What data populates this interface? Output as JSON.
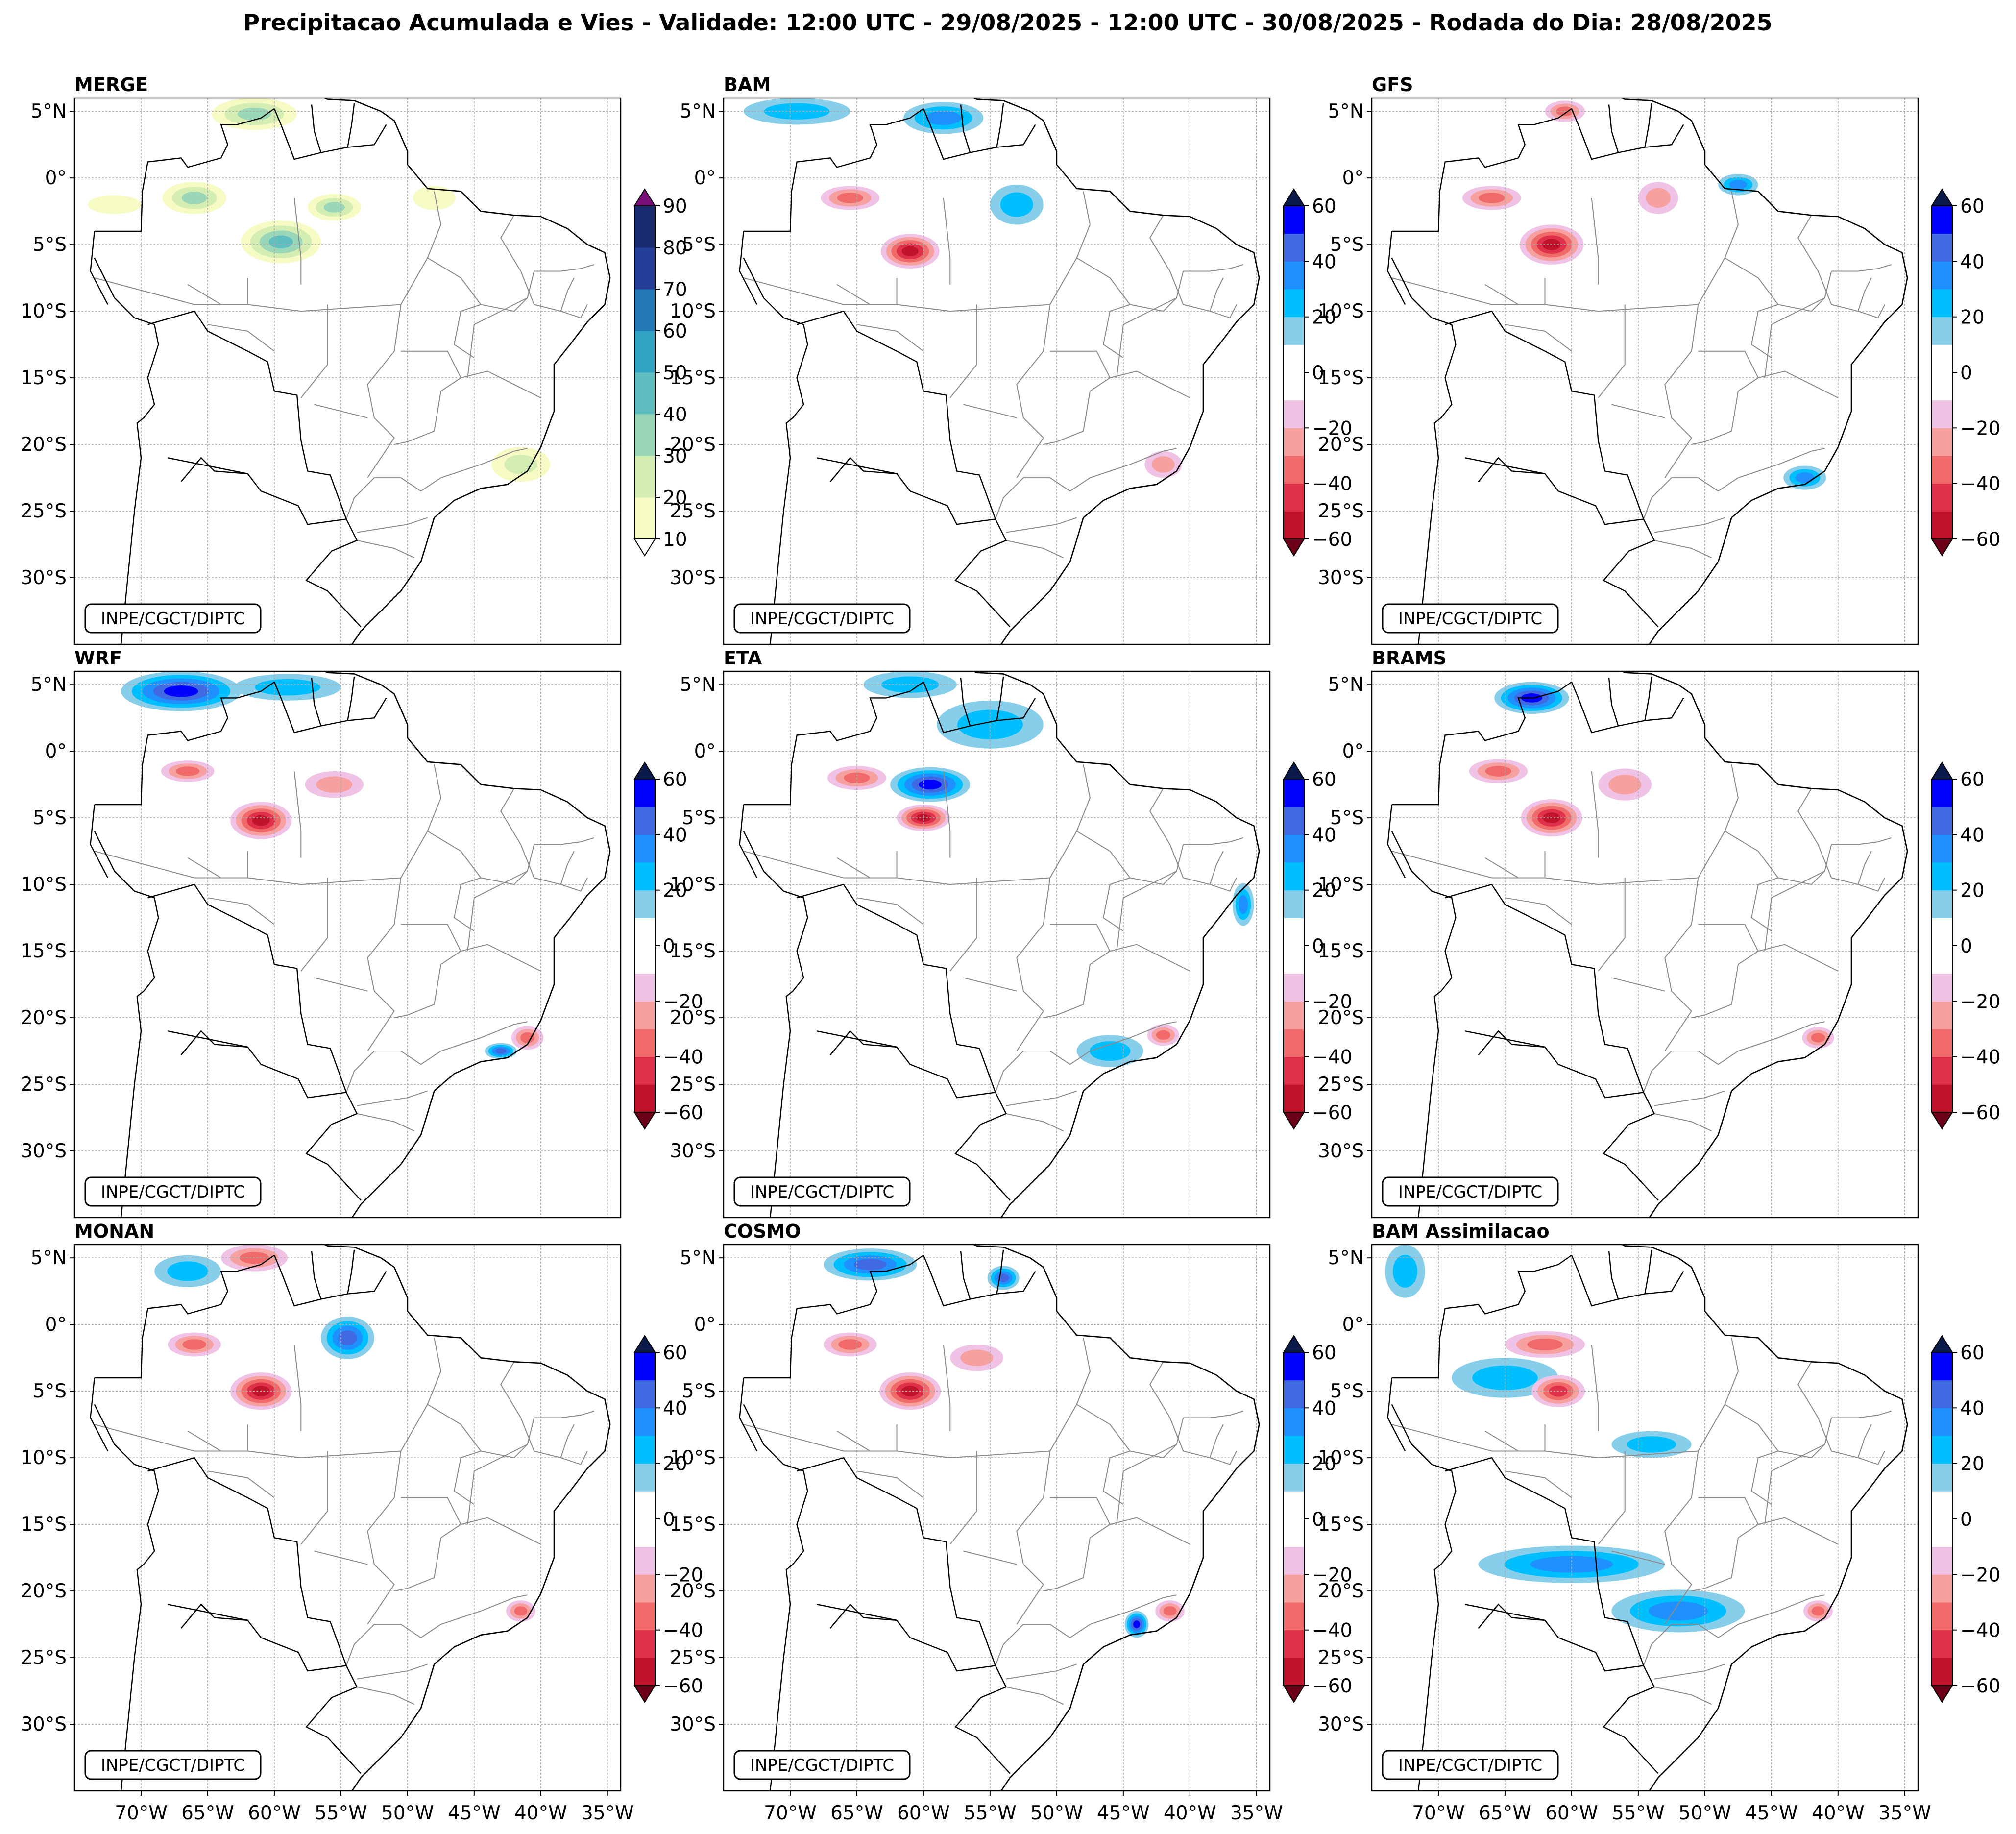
{
  "title": "Precipitacao Acumulada e Vies - Validade: 12:00 UTC - 29/08/2025 - 12:00 UTC - 30/08/2025 - Rodada do Dia: 28/08/2025",
  "credit": "INPE/CGCT/DIPTC",
  "map": {
    "lon_range": [
      -75,
      -34
    ],
    "lat_range": [
      -35,
      6
    ],
    "lat_ticks": [
      {
        "value": 5,
        "label": "5°N"
      },
      {
        "value": 0,
        "label": "0°"
      },
      {
        "value": -5,
        "label": "5°S"
      },
      {
        "value": -10,
        "label": "10°S"
      },
      {
        "value": -15,
        "label": "15°S"
      },
      {
        "value": -20,
        "label": "20°S"
      },
      {
        "value": -25,
        "label": "25°S"
      },
      {
        "value": -30,
        "label": "30°S"
      }
    ],
    "lon_ticks": [
      {
        "value": -70,
        "label": "70°W"
      },
      {
        "value": -65,
        "label": "65°W"
      },
      {
        "value": -60,
        "label": "60°W"
      },
      {
        "value": -55,
        "label": "55°W"
      },
      {
        "value": -50,
        "label": "50°W"
      },
      {
        "value": -45,
        "label": "45°W"
      },
      {
        "value": -40,
        "label": "40°W"
      },
      {
        "value": -35,
        "label": "35°W"
      }
    ]
  },
  "colorbars": {
    "precip": {
      "ticks": [
        10,
        20,
        30,
        40,
        50,
        60,
        70,
        80,
        90
      ],
      "colors": [
        "#f6fbc4",
        "#d3edb3",
        "#9ad6b8",
        "#5fbfc0",
        "#31a2c3",
        "#2178b4",
        "#253e97",
        "#1a2a6e",
        "#0b1d4e"
      ],
      "over": "#7b0f7a",
      "under": "#ffffff"
    },
    "bias": {
      "ticks": [
        -60,
        -40,
        -20,
        0,
        20,
        40,
        60
      ],
      "colors": [
        "#8e0c1f",
        "#c0132c",
        "#e0314b",
        "#f06a6a",
        "#f7a0a0",
        "#efc2e6",
        "#ffffff",
        "#ffffff",
        "#87ceeb",
        "#00bfff",
        "#1e90ff",
        "#4169e1",
        "#0000ff",
        "#0a1a7a"
      ],
      "under": "#6b0018",
      "over": "#0a1a4a"
    }
  },
  "panels": [
    {
      "name": "MERGE",
      "kind": "precip",
      "features": [
        {
          "lon": -66,
          "lat": -1.5,
          "rx": 2.4,
          "ry": 1.2,
          "class": 2
        },
        {
          "lon": -59.5,
          "lat": -4.8,
          "rx": 3.0,
          "ry": 1.6,
          "class": 3
        },
        {
          "lon": -55.5,
          "lat": -2.2,
          "rx": 2.0,
          "ry": 1.0,
          "class": 2
        },
        {
          "lon": -48.0,
          "lat": -1.5,
          "rx": 1.6,
          "ry": 0.9,
          "class": 0
        },
        {
          "lon": -61.5,
          "lat": 4.8,
          "rx": 3.2,
          "ry": 1.2,
          "class": 2
        },
        {
          "lon": -72.0,
          "lat": -2.0,
          "rx": 2.0,
          "ry": 0.7,
          "class": 0
        },
        {
          "lon": -41.5,
          "lat": -21.5,
          "rx": 2.2,
          "ry": 1.3,
          "class": 1
        }
      ]
    },
    {
      "name": "BAM",
      "kind": "bias",
      "features": [
        {
          "lon": -61.0,
          "lat": -5.5,
          "rx": 2.2,
          "ry": 1.3,
          "v": -45
        },
        {
          "lon": -65.5,
          "lat": -1.5,
          "rx": 2.2,
          "ry": 0.9,
          "v": -25
        },
        {
          "lon": -69.5,
          "lat": 5.0,
          "rx": 4.0,
          "ry": 1.0,
          "v": 15
        },
        {
          "lon": -58.5,
          "lat": 4.5,
          "rx": 3.0,
          "ry": 1.2,
          "v": 25
        },
        {
          "lon": -53.0,
          "lat": -2.0,
          "rx": 2.0,
          "ry": 1.5,
          "v": 15
        },
        {
          "lon": -42.0,
          "lat": -21.5,
          "rx": 1.4,
          "ry": 1.0,
          "v": -20
        }
      ]
    },
    {
      "name": "GFS",
      "kind": "bias",
      "features": [
        {
          "lon": -61.5,
          "lat": -5.0,
          "rx": 2.4,
          "ry": 1.5,
          "v": -45
        },
        {
          "lon": -66.0,
          "lat": -1.5,
          "rx": 2.2,
          "ry": 0.9,
          "v": -25
        },
        {
          "lon": -53.5,
          "lat": -1.5,
          "rx": 1.5,
          "ry": 1.2,
          "v": -15
        },
        {
          "lon": -60.5,
          "lat": 5.0,
          "rx": 1.5,
          "ry": 0.8,
          "v": -25
        },
        {
          "lon": -47.5,
          "lat": -0.5,
          "rx": 1.5,
          "ry": 0.8,
          "v": 25
        },
        {
          "lon": -42.5,
          "lat": -22.5,
          "rx": 1.6,
          "ry": 0.9,
          "v": 30
        }
      ]
    },
    {
      "name": "WRF",
      "kind": "bias",
      "features": [
        {
          "lon": -61.0,
          "lat": -5.2,
          "rx": 2.3,
          "ry": 1.4,
          "v": -45
        },
        {
          "lon": -66.5,
          "lat": -1.5,
          "rx": 2.0,
          "ry": 0.8,
          "v": -25
        },
        {
          "lon": -55.5,
          "lat": -2.5,
          "rx": 2.2,
          "ry": 1.0,
          "v": -15
        },
        {
          "lon": -67.0,
          "lat": 4.5,
          "rx": 4.5,
          "ry": 1.5,
          "v": 45
        },
        {
          "lon": -59.0,
          "lat": 4.8,
          "rx": 4.0,
          "ry": 1.0,
          "v": 20
        },
        {
          "lon": -43.0,
          "lat": -22.5,
          "rx": 1.2,
          "ry": 0.6,
          "v": 35
        },
        {
          "lon": -41.0,
          "lat": -21.5,
          "rx": 1.2,
          "ry": 0.9,
          "v": -25
        }
      ]
    },
    {
      "name": "ETA",
      "kind": "bias",
      "features": [
        {
          "lon": -59.5,
          "lat": -2.5,
          "rx": 3.0,
          "ry": 1.3,
          "v": 45
        },
        {
          "lon": -60.0,
          "lat": -5.0,
          "rx": 2.0,
          "ry": 1.0,
          "v": -45
        },
        {
          "lon": -65.0,
          "lat": -2.0,
          "rx": 2.2,
          "ry": 0.9,
          "v": -30
        },
        {
          "lon": -55.0,
          "lat": 2.0,
          "rx": 4.0,
          "ry": 1.8,
          "v": 15
        },
        {
          "lon": -61.0,
          "lat": 5.0,
          "rx": 3.5,
          "ry": 1.0,
          "v": 20
        },
        {
          "lon": -46.0,
          "lat": -22.5,
          "rx": 2.5,
          "ry": 1.2,
          "v": 15
        },
        {
          "lon": -42.0,
          "lat": -21.3,
          "rx": 1.2,
          "ry": 0.8,
          "v": -25
        },
        {
          "lon": -36.0,
          "lat": -11.5,
          "rx": 0.8,
          "ry": 1.6,
          "v": 25
        }
      ]
    },
    {
      "name": "BRAMS",
      "kind": "bias",
      "features": [
        {
          "lon": -61.5,
          "lat": -5.0,
          "rx": 2.3,
          "ry": 1.4,
          "v": -45
        },
        {
          "lon": -65.5,
          "lat": -1.5,
          "rx": 2.2,
          "ry": 0.9,
          "v": -25
        },
        {
          "lon": -56.0,
          "lat": -2.5,
          "rx": 2.0,
          "ry": 1.2,
          "v": -15
        },
        {
          "lon": -63.0,
          "lat": 4.0,
          "rx": 2.8,
          "ry": 1.2,
          "v": 45
        },
        {
          "lon": -41.5,
          "lat": -21.5,
          "rx": 1.2,
          "ry": 0.8,
          "v": -25
        }
      ]
    },
    {
      "name": "MONAN",
      "kind": "bias",
      "features": [
        {
          "lon": -61.0,
          "lat": -5.0,
          "rx": 2.3,
          "ry": 1.4,
          "v": -45
        },
        {
          "lon": -66.0,
          "lat": -1.5,
          "rx": 2.0,
          "ry": 0.9,
          "v": -25
        },
        {
          "lon": -54.5,
          "lat": -1.0,
          "rx": 2.0,
          "ry": 1.6,
          "v": 35
        },
        {
          "lon": -61.5,
          "lat": 5.0,
          "rx": 2.5,
          "ry": 1.0,
          "v": -30
        },
        {
          "lon": -66.5,
          "lat": 4.0,
          "rx": 2.5,
          "ry": 1.2,
          "v": 15
        },
        {
          "lon": -41.5,
          "lat": -21.5,
          "rx": 1.1,
          "ry": 0.8,
          "v": -30
        }
      ]
    },
    {
      "name": "COSMO",
      "kind": "bias",
      "features": [
        {
          "lon": -61.0,
          "lat": -5.0,
          "rx": 2.3,
          "ry": 1.4,
          "v": -45
        },
        {
          "lon": -65.5,
          "lat": -1.5,
          "rx": 2.0,
          "ry": 0.9,
          "v": -25
        },
        {
          "lon": -56.0,
          "lat": -2.5,
          "rx": 2.0,
          "ry": 1.0,
          "v": -15
        },
        {
          "lon": -64.0,
          "lat": 4.5,
          "rx": 3.5,
          "ry": 1.2,
          "v": 40
        },
        {
          "lon": -54.0,
          "lat": 3.5,
          "rx": 1.2,
          "ry": 0.9,
          "v": 35
        },
        {
          "lon": -44.0,
          "lat": -22.5,
          "rx": 0.9,
          "ry": 1.0,
          "v": 50
        },
        {
          "lon": -41.5,
          "lat": -21.5,
          "rx": 1.1,
          "ry": 0.8,
          "v": -25
        }
      ]
    },
    {
      "name": "BAM Assimilacao",
      "kind": "bias",
      "features": [
        {
          "lon": -65.0,
          "lat": -4.0,
          "rx": 4.0,
          "ry": 1.5,
          "v": 15
        },
        {
          "lon": -62.0,
          "lat": -1.5,
          "rx": 3.0,
          "ry": 1.0,
          "v": -25
        },
        {
          "lon": -61.0,
          "lat": -5.0,
          "rx": 2.0,
          "ry": 1.2,
          "v": -35
        },
        {
          "lon": -72.5,
          "lat": 4.0,
          "rx": 1.5,
          "ry": 2.0,
          "v": 15
        },
        {
          "lon": -60.0,
          "lat": -18.0,
          "rx": 7.0,
          "ry": 1.4,
          "v": 25
        },
        {
          "lon": -52.0,
          "lat": -21.5,
          "rx": 5.0,
          "ry": 1.6,
          "v": 25
        },
        {
          "lon": -54.0,
          "lat": -9.0,
          "rx": 3.0,
          "ry": 1.0,
          "v": 15
        },
        {
          "lon": -41.5,
          "lat": -21.5,
          "rx": 1.1,
          "ry": 0.8,
          "v": -25
        }
      ]
    }
  ]
}
